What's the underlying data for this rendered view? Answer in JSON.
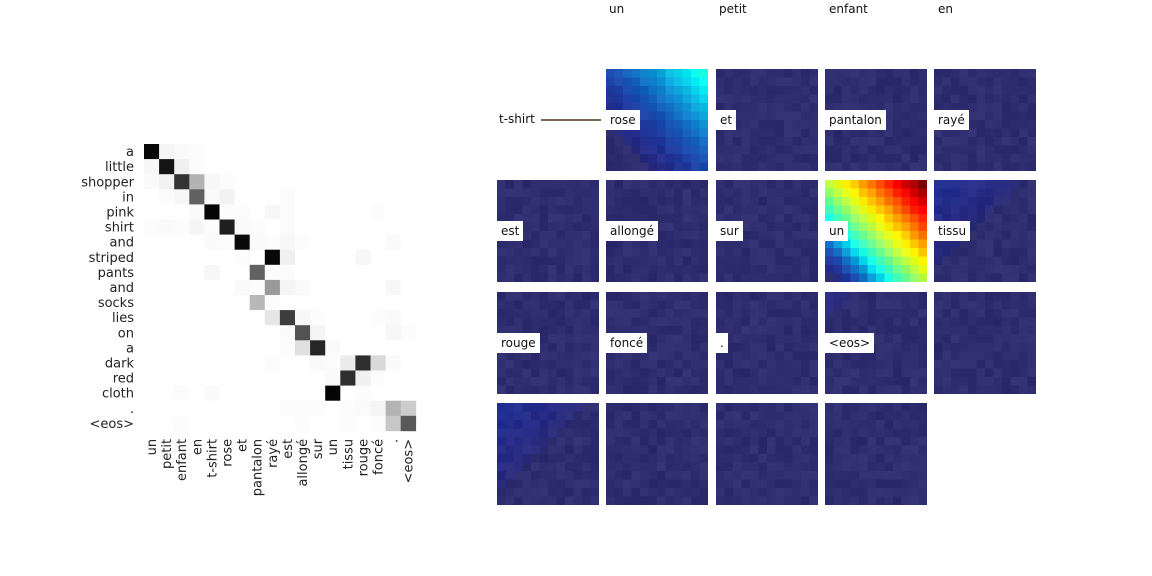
{
  "chart_data": [
    {
      "type": "heatmap",
      "title": "",
      "xlabel": "",
      "ylabel": "",
      "row_labels": [
        "a",
        "little",
        "shopper",
        "in",
        "pink",
        "shirt",
        "and",
        "striped",
        "pants",
        "and",
        "socks",
        "lies",
        "on",
        "a",
        "dark",
        "red",
        "cloth",
        ".",
        "<eos>"
      ],
      "col_labels": [
        "un",
        "petit",
        "enfant",
        "en",
        "t-shirt",
        "rose",
        "et",
        "pantalon",
        "rayé",
        "est",
        "allongé",
        "sur",
        "un",
        "tissu",
        "rouge",
        "foncé",
        ".",
        "<eos>"
      ],
      "colormap": "greys",
      "values": [
        [
          0.97,
          0.04,
          0.02,
          0.01,
          0,
          0,
          0,
          0,
          0,
          0,
          0,
          0,
          0,
          0,
          0,
          0,
          0,
          0
        ],
        [
          0.03,
          0.92,
          0.06,
          0.01,
          0,
          0,
          0,
          0,
          0,
          0,
          0,
          0,
          0,
          0,
          0,
          0,
          0,
          0
        ],
        [
          0.02,
          0.05,
          0.8,
          0.3,
          0.03,
          0.01,
          0,
          0,
          0,
          0,
          0,
          0,
          0,
          0,
          0,
          0,
          0,
          0
        ],
        [
          0,
          0.01,
          0.03,
          0.62,
          0.02,
          0.05,
          0,
          0,
          0,
          0.01,
          0,
          0,
          0,
          0,
          0,
          0,
          0,
          0
        ],
        [
          0,
          0,
          0,
          0.02,
          0.98,
          0.01,
          0.01,
          0,
          0.03,
          0.01,
          0,
          0,
          0,
          0,
          0,
          0.01,
          0,
          0
        ],
        [
          0.01,
          0.02,
          0.01,
          0.04,
          0.01,
          0.88,
          0.02,
          0.01,
          0,
          0.01,
          0,
          0,
          0,
          0,
          0,
          0,
          0,
          0
        ],
        [
          0,
          0,
          0,
          0,
          0.02,
          0.01,
          0.96,
          0.02,
          0.01,
          0.03,
          0.01,
          0,
          0,
          0,
          0,
          0,
          0.02,
          0
        ],
        [
          0,
          0,
          0,
          0,
          0,
          0,
          0.01,
          0,
          0.97,
          0.06,
          0,
          0,
          0,
          0,
          0.03,
          0,
          0,
          0
        ],
        [
          0,
          0,
          0,
          0,
          0.03,
          0,
          0,
          0.62,
          0.01,
          0.01,
          0,
          0,
          0,
          0,
          0,
          0,
          0,
          0
        ],
        [
          0,
          0,
          0,
          0,
          0,
          0,
          0.02,
          0.01,
          0.4,
          0.04,
          0.02,
          0,
          0,
          0,
          0,
          0,
          0.03,
          0
        ],
        [
          0,
          0,
          0,
          0,
          0,
          0,
          0,
          0.28,
          0.01,
          0,
          0,
          0,
          0,
          0,
          0,
          0,
          0,
          0
        ],
        [
          0,
          0,
          0,
          0,
          0,
          0,
          0,
          0,
          0.1,
          0.76,
          0.03,
          0.01,
          0,
          0,
          0,
          0.01,
          0.02,
          0
        ],
        [
          0,
          0,
          0,
          0,
          0,
          0,
          0,
          0,
          0,
          0.02,
          0.68,
          0.04,
          0,
          0,
          0,
          0,
          0.03,
          0.01
        ],
        [
          0,
          0,
          0,
          0,
          0,
          0,
          0,
          0,
          0,
          0.01,
          0.12,
          0.85,
          0.02,
          0,
          0,
          0,
          0,
          0
        ],
        [
          0,
          0,
          0,
          0,
          0,
          0,
          0,
          0,
          0.01,
          0,
          0,
          0.02,
          0.01,
          0.08,
          0.82,
          0.15,
          0.02,
          0
        ],
        [
          0,
          0,
          0,
          0,
          0,
          0,
          0,
          0,
          0,
          0,
          0,
          0,
          0.02,
          0.82,
          0.06,
          0.01,
          0,
          0
        ],
        [
          0,
          0,
          0.01,
          0,
          0.02,
          0,
          0,
          0,
          0,
          0,
          0,
          0,
          0.98,
          0,
          0.01,
          0,
          0,
          0
        ],
        [
          0,
          0,
          0,
          0,
          0,
          0,
          0,
          0,
          0,
          0.01,
          0.01,
          0.01,
          0,
          0.01,
          0.02,
          0.04,
          0.3,
          0.2
        ],
        [
          0,
          0,
          0.01,
          0,
          0,
          0,
          0,
          0,
          0,
          0,
          0.01,
          0,
          0,
          0.01,
          0,
          0.01,
          0.22,
          0.65
        ]
      ]
    }
  ],
  "tiles": {
    "header_labels": [
      "un",
      "petit",
      "enfant",
      "en"
    ],
    "callout_label": "t-shirt",
    "rows": [
      [
        {
          "label": "",
          "empty": true
        },
        {
          "label": "rose",
          "intensity": 0.32,
          "focus": "top-right",
          "spread": 0.85
        },
        {
          "label": "et",
          "intensity": 0.0,
          "focus": "",
          "spread": 0
        },
        {
          "label": "pantalon",
          "intensity": 0.0,
          "focus": "",
          "spread": 0
        },
        {
          "label": "rayé",
          "intensity": 0.0,
          "focus": "",
          "spread": 0
        }
      ],
      [
        {
          "label": "est",
          "intensity": 0.0,
          "focus": "",
          "spread": 0
        },
        {
          "label": "allongé",
          "intensity": 0.0,
          "focus": "",
          "spread": 0
        },
        {
          "label": "sur",
          "intensity": 0.0,
          "focus": "",
          "spread": 0
        },
        {
          "label": "un",
          "intensity": 1.0,
          "focus": "top-right",
          "spread": 1.0
        },
        {
          "label": "tissu",
          "intensity": 0.08,
          "focus": "top-left",
          "spread": 0.6
        }
      ],
      [
        {
          "label": "rouge",
          "intensity": 0.0,
          "focus": "",
          "spread": 0
        },
        {
          "label": "foncé",
          "intensity": 0.0,
          "focus": "",
          "spread": 0
        },
        {
          "label": ".",
          "intensity": 0.0,
          "focus": "",
          "spread": 0
        },
        {
          "label": "<eos>",
          "intensity": 0.03,
          "focus": "top-left",
          "spread": 0.4
        },
        {
          "label": "",
          "intensity": 0.0,
          "focus": "",
          "spread": 0
        }
      ],
      [
        {
          "label": "",
          "intensity": 0.08,
          "focus": "top-left",
          "spread": 0.6
        },
        {
          "label": "",
          "intensity": 0.0,
          "focus": "",
          "spread": 0
        },
        {
          "label": "",
          "intensity": 0.0,
          "focus": "",
          "spread": 0
        },
        {
          "label": "",
          "intensity": 0.0,
          "focus": "",
          "spread": 0
        },
        {
          "label": "",
          "empty": true
        }
      ]
    ]
  }
}
